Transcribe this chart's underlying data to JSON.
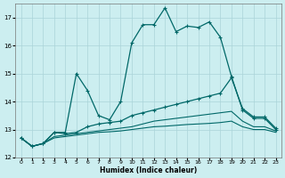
{
  "xlabel": "Humidex (Indice chaleur)",
  "bg_color": "#cceef0",
  "grid_color": "#aad4d8",
  "line_color": "#006868",
  "xlim": [
    -0.5,
    23.5
  ],
  "ylim": [
    12,
    17.5
  ],
  "yticks": [
    12,
    13,
    14,
    15,
    16,
    17
  ],
  "xticks": [
    0,
    1,
    2,
    3,
    4,
    5,
    6,
    7,
    8,
    9,
    10,
    11,
    12,
    13,
    14,
    15,
    16,
    17,
    18,
    19,
    20,
    21,
    22,
    23
  ],
  "series1_x": [
    0,
    1,
    2,
    3,
    4,
    5,
    6,
    7,
    8,
    9,
    10,
    11,
    12,
    13,
    14,
    15,
    16,
    17,
    18,
    19,
    20,
    21,
    22,
    23
  ],
  "series1_y": [
    12.7,
    12.4,
    12.5,
    12.9,
    12.9,
    15.0,
    14.4,
    13.5,
    13.35,
    14.0,
    16.1,
    16.75,
    16.75,
    17.35,
    16.5,
    16.7,
    16.65,
    16.85,
    16.3,
    14.9,
    13.7,
    13.4,
    13.4,
    13.0
  ],
  "series2_x": [
    0,
    1,
    2,
    3,
    4,
    5,
    6,
    7,
    8,
    9,
    10,
    11,
    12,
    13,
    14,
    15,
    16,
    17,
    18,
    19,
    20,
    21,
    22,
    23
  ],
  "series2_y": [
    12.7,
    12.4,
    12.5,
    12.9,
    12.85,
    12.9,
    13.1,
    13.2,
    13.25,
    13.3,
    13.5,
    13.6,
    13.7,
    13.8,
    13.9,
    14.0,
    14.1,
    14.2,
    14.3,
    14.85,
    13.75,
    13.45,
    13.45,
    13.05
  ],
  "series3_x": [
    0,
    1,
    2,
    3,
    4,
    5,
    6,
    7,
    8,
    9,
    10,
    11,
    12,
    13,
    14,
    15,
    16,
    17,
    18,
    19,
    20,
    21,
    22,
    23
  ],
  "series3_y": [
    12.7,
    12.4,
    12.5,
    12.75,
    12.8,
    12.85,
    12.9,
    12.95,
    13.0,
    13.05,
    13.1,
    13.2,
    13.3,
    13.35,
    13.4,
    13.45,
    13.5,
    13.55,
    13.6,
    13.65,
    13.3,
    13.1,
    13.1,
    12.95
  ],
  "series4_x": [
    0,
    1,
    2,
    3,
    4,
    5,
    6,
    7,
    8,
    9,
    10,
    11,
    12,
    13,
    14,
    15,
    16,
    17,
    18,
    19,
    20,
    21,
    22,
    23
  ],
  "series4_y": [
    12.7,
    12.4,
    12.5,
    12.7,
    12.75,
    12.8,
    12.85,
    12.9,
    12.92,
    12.95,
    13.0,
    13.05,
    13.1,
    13.12,
    13.15,
    13.18,
    13.2,
    13.22,
    13.25,
    13.3,
    13.1,
    13.0,
    13.0,
    12.9
  ]
}
